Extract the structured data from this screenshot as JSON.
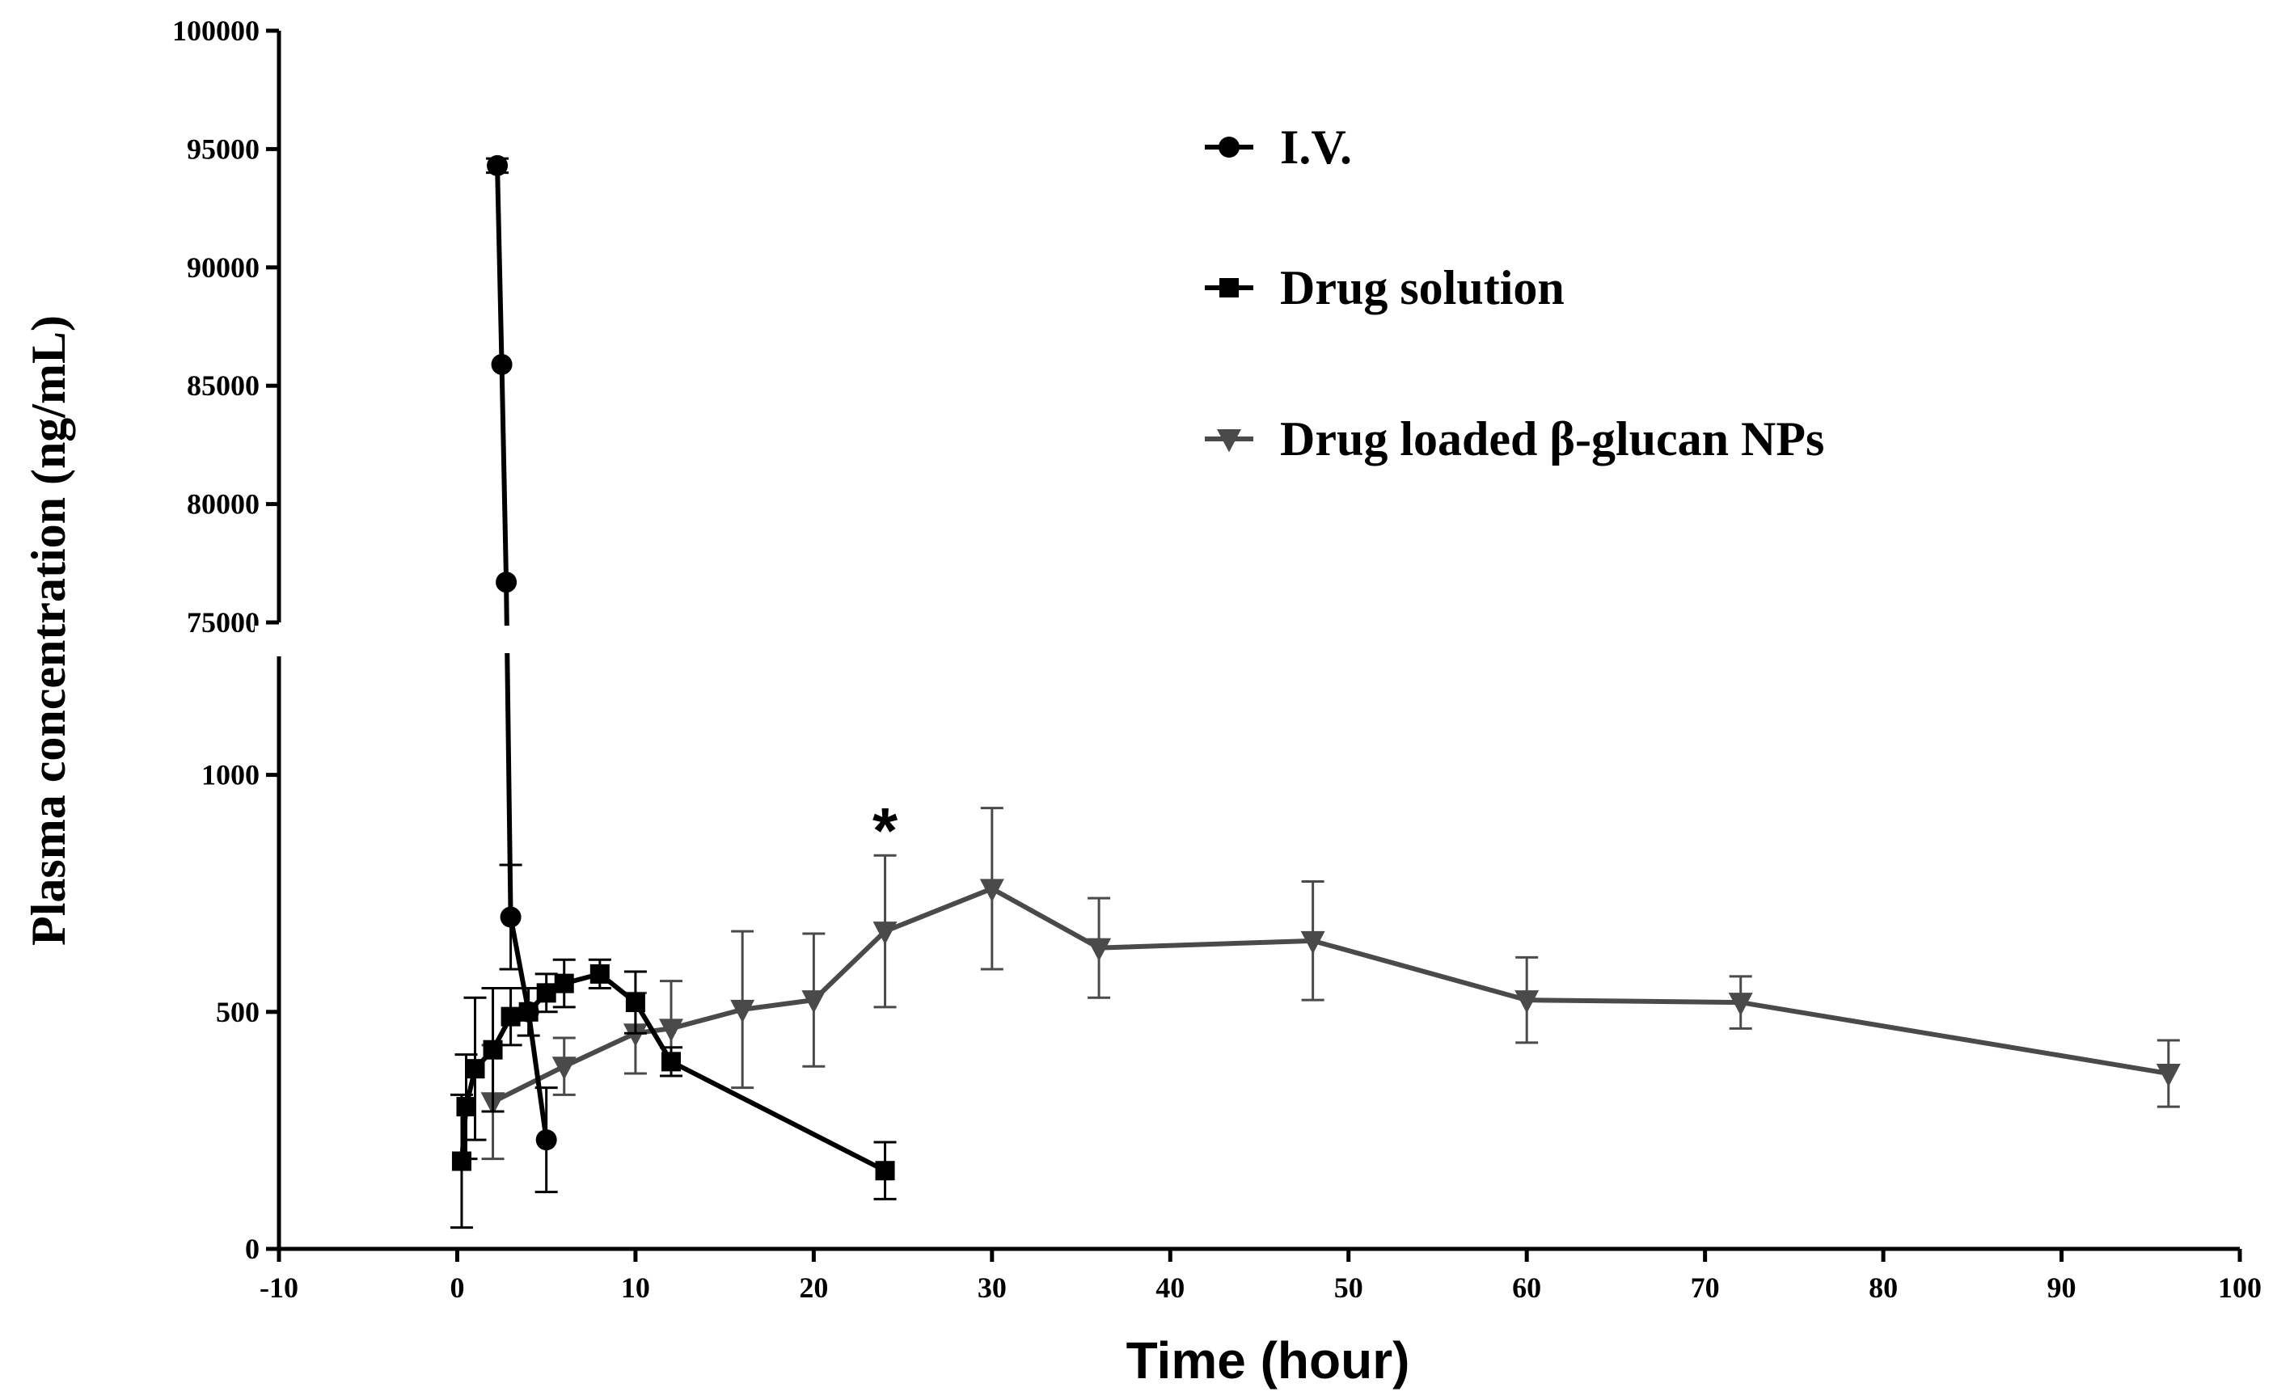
{
  "chart_data": {
    "type": "line",
    "title": "",
    "xlabel": "Time (hour)",
    "ylabel": "Plasma concentration (ng/mL)",
    "xlim": [
      -10,
      100
    ],
    "x_ticks": [
      -10,
      0,
      10,
      20,
      30,
      40,
      50,
      60,
      70,
      80,
      90,
      100
    ],
    "y_axis_broken": true,
    "y_segments": [
      {
        "name": "lower",
        "range": [
          0,
          1250
        ],
        "ticks": [
          0,
          500,
          1000
        ]
      },
      {
        "name": "upper",
        "range": [
          75000,
          100000
        ],
        "ticks": [
          75000,
          80000,
          85000,
          90000,
          95000,
          100000
        ]
      }
    ],
    "grid": false,
    "legend_position": "top-right",
    "series": [
      {
        "name": "I.V.",
        "marker": "circle",
        "color": "#000000",
        "points": [
          {
            "x": 2.25,
            "y": 94300,
            "err": 300
          },
          {
            "x": 2.5,
            "y": 85900,
            "err": 0
          },
          {
            "x": 2.75,
            "y": 76700,
            "err": 0
          },
          {
            "x": 3,
            "y": 700,
            "err": 110
          },
          {
            "x": 4,
            "y": 500,
            "err": 0
          },
          {
            "x": 5,
            "y": 230,
            "err": 110
          }
        ]
      },
      {
        "name": "Drug solution",
        "marker": "square",
        "color": "#000000",
        "points": [
          {
            "x": 0.25,
            "y": 185,
            "err": 140
          },
          {
            "x": 0.5,
            "y": 300,
            "err": 110
          },
          {
            "x": 1,
            "y": 380,
            "err": 150
          },
          {
            "x": 2,
            "y": 420,
            "err": 130
          },
          {
            "x": 3,
            "y": 490,
            "err": 60
          },
          {
            "x": 4,
            "y": 500,
            "err": 50
          },
          {
            "x": 5,
            "y": 540,
            "err": 40
          },
          {
            "x": 6,
            "y": 560,
            "err": 50
          },
          {
            "x": 8,
            "y": 580,
            "err": 30
          },
          {
            "x": 10,
            "y": 520,
            "err": 65
          },
          {
            "x": 12,
            "y": 395,
            "err": 30
          },
          {
            "x": 24,
            "y": 165,
            "err": 60
          }
        ]
      },
      {
        "name": "Drug loaded β-glucan NPs",
        "marker": "triangle-down",
        "color": "#4a4a4a",
        "points": [
          {
            "x": 2,
            "y": 310,
            "err": 120
          },
          {
            "x": 6,
            "y": 385,
            "err": 60
          },
          {
            "x": 10,
            "y": 455,
            "err": 85
          },
          {
            "x": 12,
            "y": 465,
            "err": 100
          },
          {
            "x": 16,
            "y": 505,
            "err": 165
          },
          {
            "x": 20,
            "y": 525,
            "err": 140
          },
          {
            "x": 24,
            "y": 670,
            "err": 160
          },
          {
            "x": 30,
            "y": 760,
            "err": 170
          },
          {
            "x": 36,
            "y": 635,
            "err": 105
          },
          {
            "x": 48,
            "y": 650,
            "err": 125
          },
          {
            "x": 60,
            "y": 525,
            "err": 90
          },
          {
            "x": 72,
            "y": 520,
            "err": 55
          },
          {
            "x": 96,
            "y": 370,
            "err": 70
          }
        ]
      }
    ],
    "annotations": [
      {
        "text": "*",
        "x": 24,
        "y": 900
      }
    ]
  }
}
